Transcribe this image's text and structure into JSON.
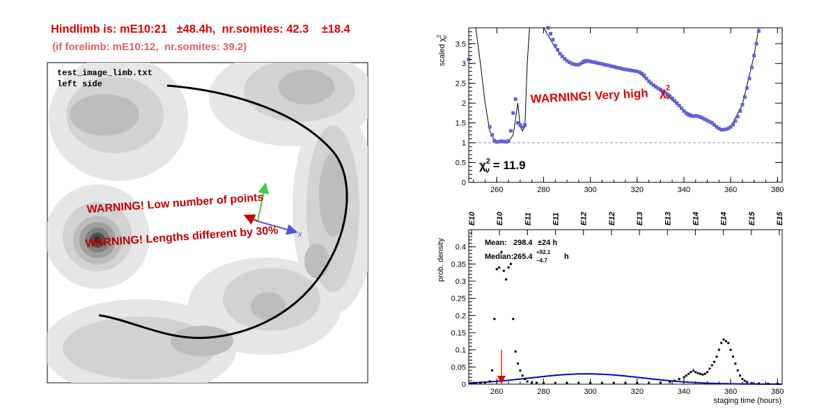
{
  "header": {
    "hindlimb_line": "Hindlimb is: mE10:21   ±48.4h,  nr.somites: 42.3    ±18.4",
    "forelimb_line": "(if forelimb: mE10:12,  nr.somites: 39.2)"
  },
  "image_panel": {
    "filename": "test_image_limb.txt",
    "side": "left side",
    "warning_points": "WARNING! Low number of points",
    "warning_lengths": "WARNING! Lengths different by 30%",
    "axis_label_x": "x"
  },
  "chart_data": [
    {
      "type": "scatter",
      "title": "",
      "ylabel": "scaled χ²ν",
      "ylabel_main": "scaled χ",
      "ylabel_sup": "2",
      "ylabel_sub": "ν",
      "xlim": [
        248,
        382
      ],
      "ylim": [
        0,
        3.9
      ],
      "xticks": [
        260,
        280,
        300,
        320,
        340,
        360,
        380
      ],
      "yticks": [
        0,
        0.5,
        1,
        1.5,
        2,
        2.5,
        3,
        3.5
      ],
      "ytick_labels": [
        "0",
        "0.5",
        "1",
        "1.5",
        "2",
        "2.5",
        "3",
        "3.5"
      ],
      "reference_line_y": 1,
      "warning": "WARNING! Very high",
      "warning_sym": "χ",
      "warning_sup": "2",
      "warning_sub": "ν",
      "chi2_sym": "χ",
      "chi2_sup": "2",
      "chi2_sub": "ν",
      "chi2_value": " = 11.9",
      "points_color": "#6060e0",
      "points": [
        [
          248,
          3.1
        ],
        [
          257,
          1.4
        ],
        [
          258,
          1.2
        ],
        [
          259,
          1.05
        ],
        [
          260,
          1.02
        ],
        [
          261,
          1.03
        ],
        [
          262,
          1.04
        ],
        [
          263,
          1.03
        ],
        [
          264,
          1.02
        ],
        [
          265,
          1.05
        ],
        [
          266,
          1.3
        ],
        [
          267,
          1.75
        ],
        [
          268,
          2.1
        ],
        [
          269,
          1.5
        ],
        [
          270,
          1.45
        ],
        [
          271,
          1.4
        ],
        [
          272,
          1.45
        ],
        [
          282,
          3.9
        ],
        [
          283,
          3.75
        ],
        [
          284,
          3.6
        ],
        [
          285,
          3.45
        ],
        [
          286,
          3.35
        ],
        [
          287,
          3.25
        ],
        [
          288,
          3.18
        ],
        [
          289,
          3.12
        ],
        [
          290,
          3.07
        ],
        [
          291,
          3.03
        ],
        [
          292,
          3.0
        ],
        [
          293,
          2.98
        ],
        [
          294,
          2.97
        ],
        [
          295,
          2.97
        ],
        [
          296,
          3.0
        ],
        [
          297,
          3.05
        ],
        [
          298,
          3.07
        ],
        [
          299,
          3.07
        ],
        [
          300,
          3.05
        ],
        [
          301,
          3.04
        ],
        [
          302,
          3.03
        ],
        [
          303,
          3.01
        ],
        [
          304,
          3.0
        ],
        [
          305,
          2.99
        ],
        [
          306,
          2.97
        ],
        [
          307,
          2.96
        ],
        [
          308,
          2.95
        ],
        [
          309,
          2.93
        ],
        [
          310,
          2.92
        ],
        [
          311,
          2.9
        ],
        [
          312,
          2.89
        ],
        [
          313,
          2.88
        ],
        [
          314,
          2.86
        ],
        [
          315,
          2.85
        ],
        [
          316,
          2.84
        ],
        [
          317,
          2.83
        ],
        [
          318,
          2.82
        ],
        [
          319,
          2.81
        ],
        [
          320,
          2.8
        ],
        [
          321,
          2.78
        ],
        [
          322,
          2.75
        ],
        [
          323,
          2.7
        ],
        [
          324,
          2.62
        ],
        [
          325,
          2.55
        ],
        [
          326,
          2.5
        ],
        [
          327,
          2.45
        ],
        [
          328,
          2.41
        ],
        [
          329,
          2.37
        ],
        [
          330,
          2.34
        ],
        [
          331,
          2.3
        ],
        [
          332,
          2.26
        ],
        [
          333,
          2.22
        ],
        [
          334,
          2.18
        ],
        [
          335,
          2.12
        ],
        [
          336,
          2.06
        ],
        [
          337,
          2.0
        ],
        [
          338,
          1.94
        ],
        [
          339,
          1.87
        ],
        [
          340,
          1.8
        ],
        [
          341,
          1.74
        ],
        [
          342,
          1.7
        ],
        [
          343,
          1.68
        ],
        [
          344,
          1.67
        ],
        [
          345,
          1.68
        ],
        [
          346,
          1.67
        ],
        [
          347,
          1.65
        ],
        [
          348,
          1.62
        ],
        [
          349,
          1.59
        ],
        [
          350,
          1.56
        ],
        [
          351,
          1.53
        ],
        [
          352,
          1.5
        ],
        [
          353,
          1.45
        ],
        [
          354,
          1.4
        ],
        [
          355,
          1.36
        ],
        [
          356,
          1.33
        ],
        [
          357,
          1.33
        ],
        [
          358,
          1.34
        ],
        [
          359,
          1.36
        ],
        [
          360,
          1.4
        ],
        [
          361,
          1.46
        ],
        [
          362,
          1.55
        ],
        [
          363,
          1.66
        ],
        [
          364,
          1.8
        ],
        [
          365,
          1.96
        ],
        [
          366,
          2.15
        ],
        [
          367,
          2.38
        ],
        [
          368,
          2.62
        ],
        [
          369,
          2.9
        ],
        [
          370,
          3.2
        ],
        [
          371,
          3.5
        ],
        [
          372,
          3.82
        ]
      ],
      "fit_curve": [
        [
          251,
          3.9
        ],
        [
          253,
          3.0
        ],
        [
          255,
          2.0
        ],
        [
          257,
          1.3
        ],
        [
          259,
          1.05
        ],
        [
          262,
          1.0
        ],
        [
          265,
          1.02
        ],
        [
          267,
          1.2
        ],
        [
          268,
          1.6
        ],
        [
          269,
          2.0
        ],
        [
          270,
          1.4
        ],
        [
          271,
          1.3
        ],
        [
          272,
          1.4
        ],
        [
          273,
          3.0
        ],
        [
          274,
          3.9
        ],
        [
          280,
          3.9
        ],
        [
          282,
          3.7
        ],
        [
          285,
          3.4
        ],
        [
          290,
          3.05
        ],
        [
          295,
          2.97
        ],
        [
          300,
          3.05
        ],
        [
          310,
          2.92
        ],
        [
          320,
          2.8
        ],
        [
          325,
          2.55
        ],
        [
          330,
          2.34
        ],
        [
          340,
          1.8
        ],
        [
          345,
          1.68
        ],
        [
          350,
          1.56
        ],
        [
          355,
          1.36
        ],
        [
          357,
          1.33
        ],
        [
          360,
          1.4
        ],
        [
          365,
          1.96
        ],
        [
          370,
          3.2
        ],
        [
          372,
          3.9
        ]
      ]
    },
    {
      "type": "scatter",
      "title": "",
      "xlabel": "staging time (hours)",
      "ylabel": "prob. density",
      "xlim": [
        248,
        382
      ],
      "ylim": [
        0,
        0.45
      ],
      "xticks": [
        260,
        280,
        300,
        320,
        340,
        360,
        380
      ],
      "yticks": [
        0,
        0.05,
        0.1,
        0.15,
        0.2,
        0.25,
        0.3,
        0.35,
        0.4
      ],
      "ytick_labels": [
        "0",
        "0.05",
        "0.1",
        "0.15",
        "0.2",
        "0.25",
        "0.3",
        "0.35",
        "0.4"
      ],
      "top_axis_labels": [
        "E10",
        "E10",
        "E11",
        "E11",
        "E12",
        "E12",
        "E13",
        "E13",
        "E14",
        "E14",
        "E15",
        "E15"
      ],
      "top_axis_x": [
        249,
        255,
        261,
        267,
        273,
        279,
        285,
        291,
        297,
        303,
        309,
        315
      ],
      "stats": {
        "mean_label": "Mean:",
        "mean_value": "298.4",
        "mean_error": "±24 h",
        "median_label": "Median:",
        "median_value": "265.4",
        "median_plus": "+92.1",
        "median_minus": "−4.7",
        "median_unit": "h"
      },
      "arrow_x": 262,
      "arrow_y_top": 0.1,
      "arrow_color": "#e00000",
      "curve_color": "#0000cc",
      "points": [
        [
          249,
          0.002
        ],
        [
          251,
          0.003
        ],
        [
          253,
          0.004
        ],
        [
          255,
          0.005
        ],
        [
          257,
          0.008
        ],
        [
          258,
          0.04
        ],
        [
          259,
          0.19
        ],
        [
          260,
          0.335
        ],
        [
          261,
          0.34
        ],
        [
          262,
          0.385
        ],
        [
          263,
          0.33
        ],
        [
          264,
          0.305
        ],
        [
          265,
          0.34
        ],
        [
          266,
          0.35
        ],
        [
          267,
          0.19
        ],
        [
          268,
          0.095
        ],
        [
          269,
          0.06
        ],
        [
          270,
          0.04
        ],
        [
          271,
          0.025
        ],
        [
          272,
          0.015
        ],
        [
          273,
          0.008
        ],
        [
          275,
          0.005
        ],
        [
          277,
          0.004
        ],
        [
          280,
          0.003
        ],
        [
          285,
          0.003
        ],
        [
          290,
          0.003
        ],
        [
          295,
          0.003
        ],
        [
          300,
          0.003
        ],
        [
          305,
          0.003
        ],
        [
          310,
          0.003
        ],
        [
          315,
          0.003
        ],
        [
          320,
          0.003
        ],
        [
          325,
          0.003
        ],
        [
          330,
          0.004
        ],
        [
          334,
          0.006
        ],
        [
          336,
          0.01
        ],
        [
          338,
          0.015
        ],
        [
          340,
          0.02
        ],
        [
          341,
          0.025
        ],
        [
          342,
          0.03
        ],
        [
          343,
          0.035
        ],
        [
          344,
          0.04
        ],
        [
          345,
          0.035
        ],
        [
          346,
          0.032
        ],
        [
          347,
          0.03
        ],
        [
          348,
          0.028
        ],
        [
          349,
          0.03
        ],
        [
          350,
          0.035
        ],
        [
          351,
          0.045
        ],
        [
          352,
          0.055
        ],
        [
          353,
          0.065
        ],
        [
          354,
          0.08
        ],
        [
          355,
          0.1
        ],
        [
          356,
          0.12
        ],
        [
          357,
          0.13
        ],
        [
          358,
          0.125
        ],
        [
          359,
          0.12
        ],
        [
          360,
          0.1
        ],
        [
          361,
          0.08
        ],
        [
          362,
          0.06
        ],
        [
          363,
          0.04
        ],
        [
          364,
          0.025
        ],
        [
          365,
          0.015
        ],
        [
          366,
          0.01
        ],
        [
          367,
          0.006
        ],
        [
          369,
          0.003
        ],
        [
          372,
          0.002
        ],
        [
          376,
          0.001
        ],
        [
          380,
          0.001
        ]
      ],
      "gaussian_mean": 298.4,
      "gaussian_sigma": 24,
      "gaussian_peak": 0.03
    }
  ]
}
